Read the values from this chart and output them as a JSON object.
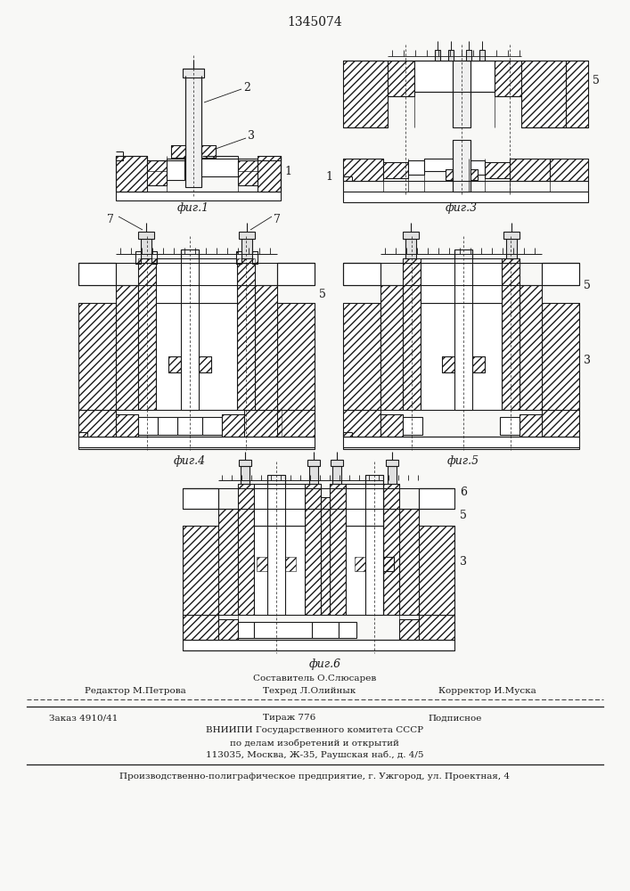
{
  "patent_number": "1345074",
  "bg_color": "#f8f8f6",
  "line_color": "#1a1a1a",
  "fig_labels": [
    "фиг.1",
    "фиг.3",
    "фиг.4",
    "фиг.5",
    "фиг.6"
  ],
  "footer_line0": "Составитель О.Слюсарев",
  "footer_editor": "Редактор М.Петрова",
  "footer_techred": "Техред Л.Олийнык",
  "footer_corr": "Корректор И.Муска",
  "footer_order": "Заказ 4910/41",
  "footer_tiraj": "Тираж 776",
  "footer_podp": "Подписное",
  "footer_vniip1": "ВНИИПИ Государственного комитета СССР",
  "footer_vniip2": "по делам изобретений и открытий",
  "footer_vniip3": "113035, Москва, Ж-35, Раушская наб., д. 4/5",
  "footer_prod": "Производственно-полиграфическое предприятие, г. Ужгород, ул. Проектная, 4"
}
